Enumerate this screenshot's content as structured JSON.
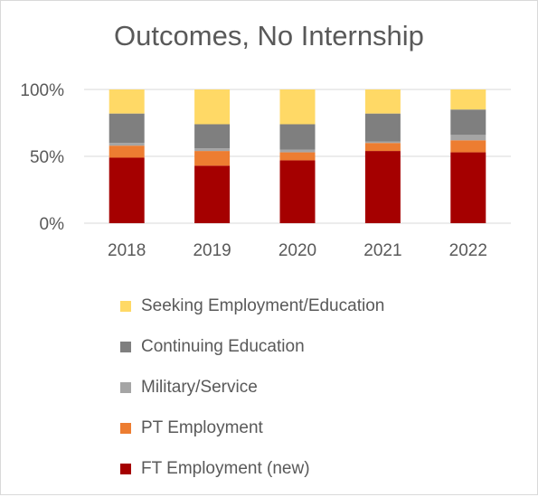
{
  "chart_data": {
    "type": "bar",
    "stacked": true,
    "percent_stacked": true,
    "title": "Outcomes, No Internship",
    "xlabel": "",
    "ylabel": "",
    "categories": [
      "2018",
      "2019",
      "2020",
      "2021",
      "2022"
    ],
    "yticks": [
      "0%",
      "50%",
      "100%"
    ],
    "ylim": [
      0,
      100
    ],
    "grid": true,
    "legend_position": "bottom",
    "series": [
      {
        "name": "FT Employment (new)",
        "color": "#a50000",
        "values": [
          49,
          43,
          47,
          54,
          53
        ]
      },
      {
        "name": "PT Employment",
        "color": "#ed7d31",
        "values": [
          9,
          11,
          6,
          6,
          9
        ]
      },
      {
        "name": "Military/Service",
        "color": "#a5a5a5",
        "values": [
          2,
          2,
          2,
          1,
          4
        ]
      },
      {
        "name": "Continuing Education",
        "color": "#7f7f7f",
        "values": [
          22,
          18,
          19,
          21,
          19
        ]
      },
      {
        "name": "Seeking Employment/Education",
        "color": "#ffd966",
        "values": [
          18,
          26,
          26,
          18,
          15
        ]
      }
    ]
  }
}
